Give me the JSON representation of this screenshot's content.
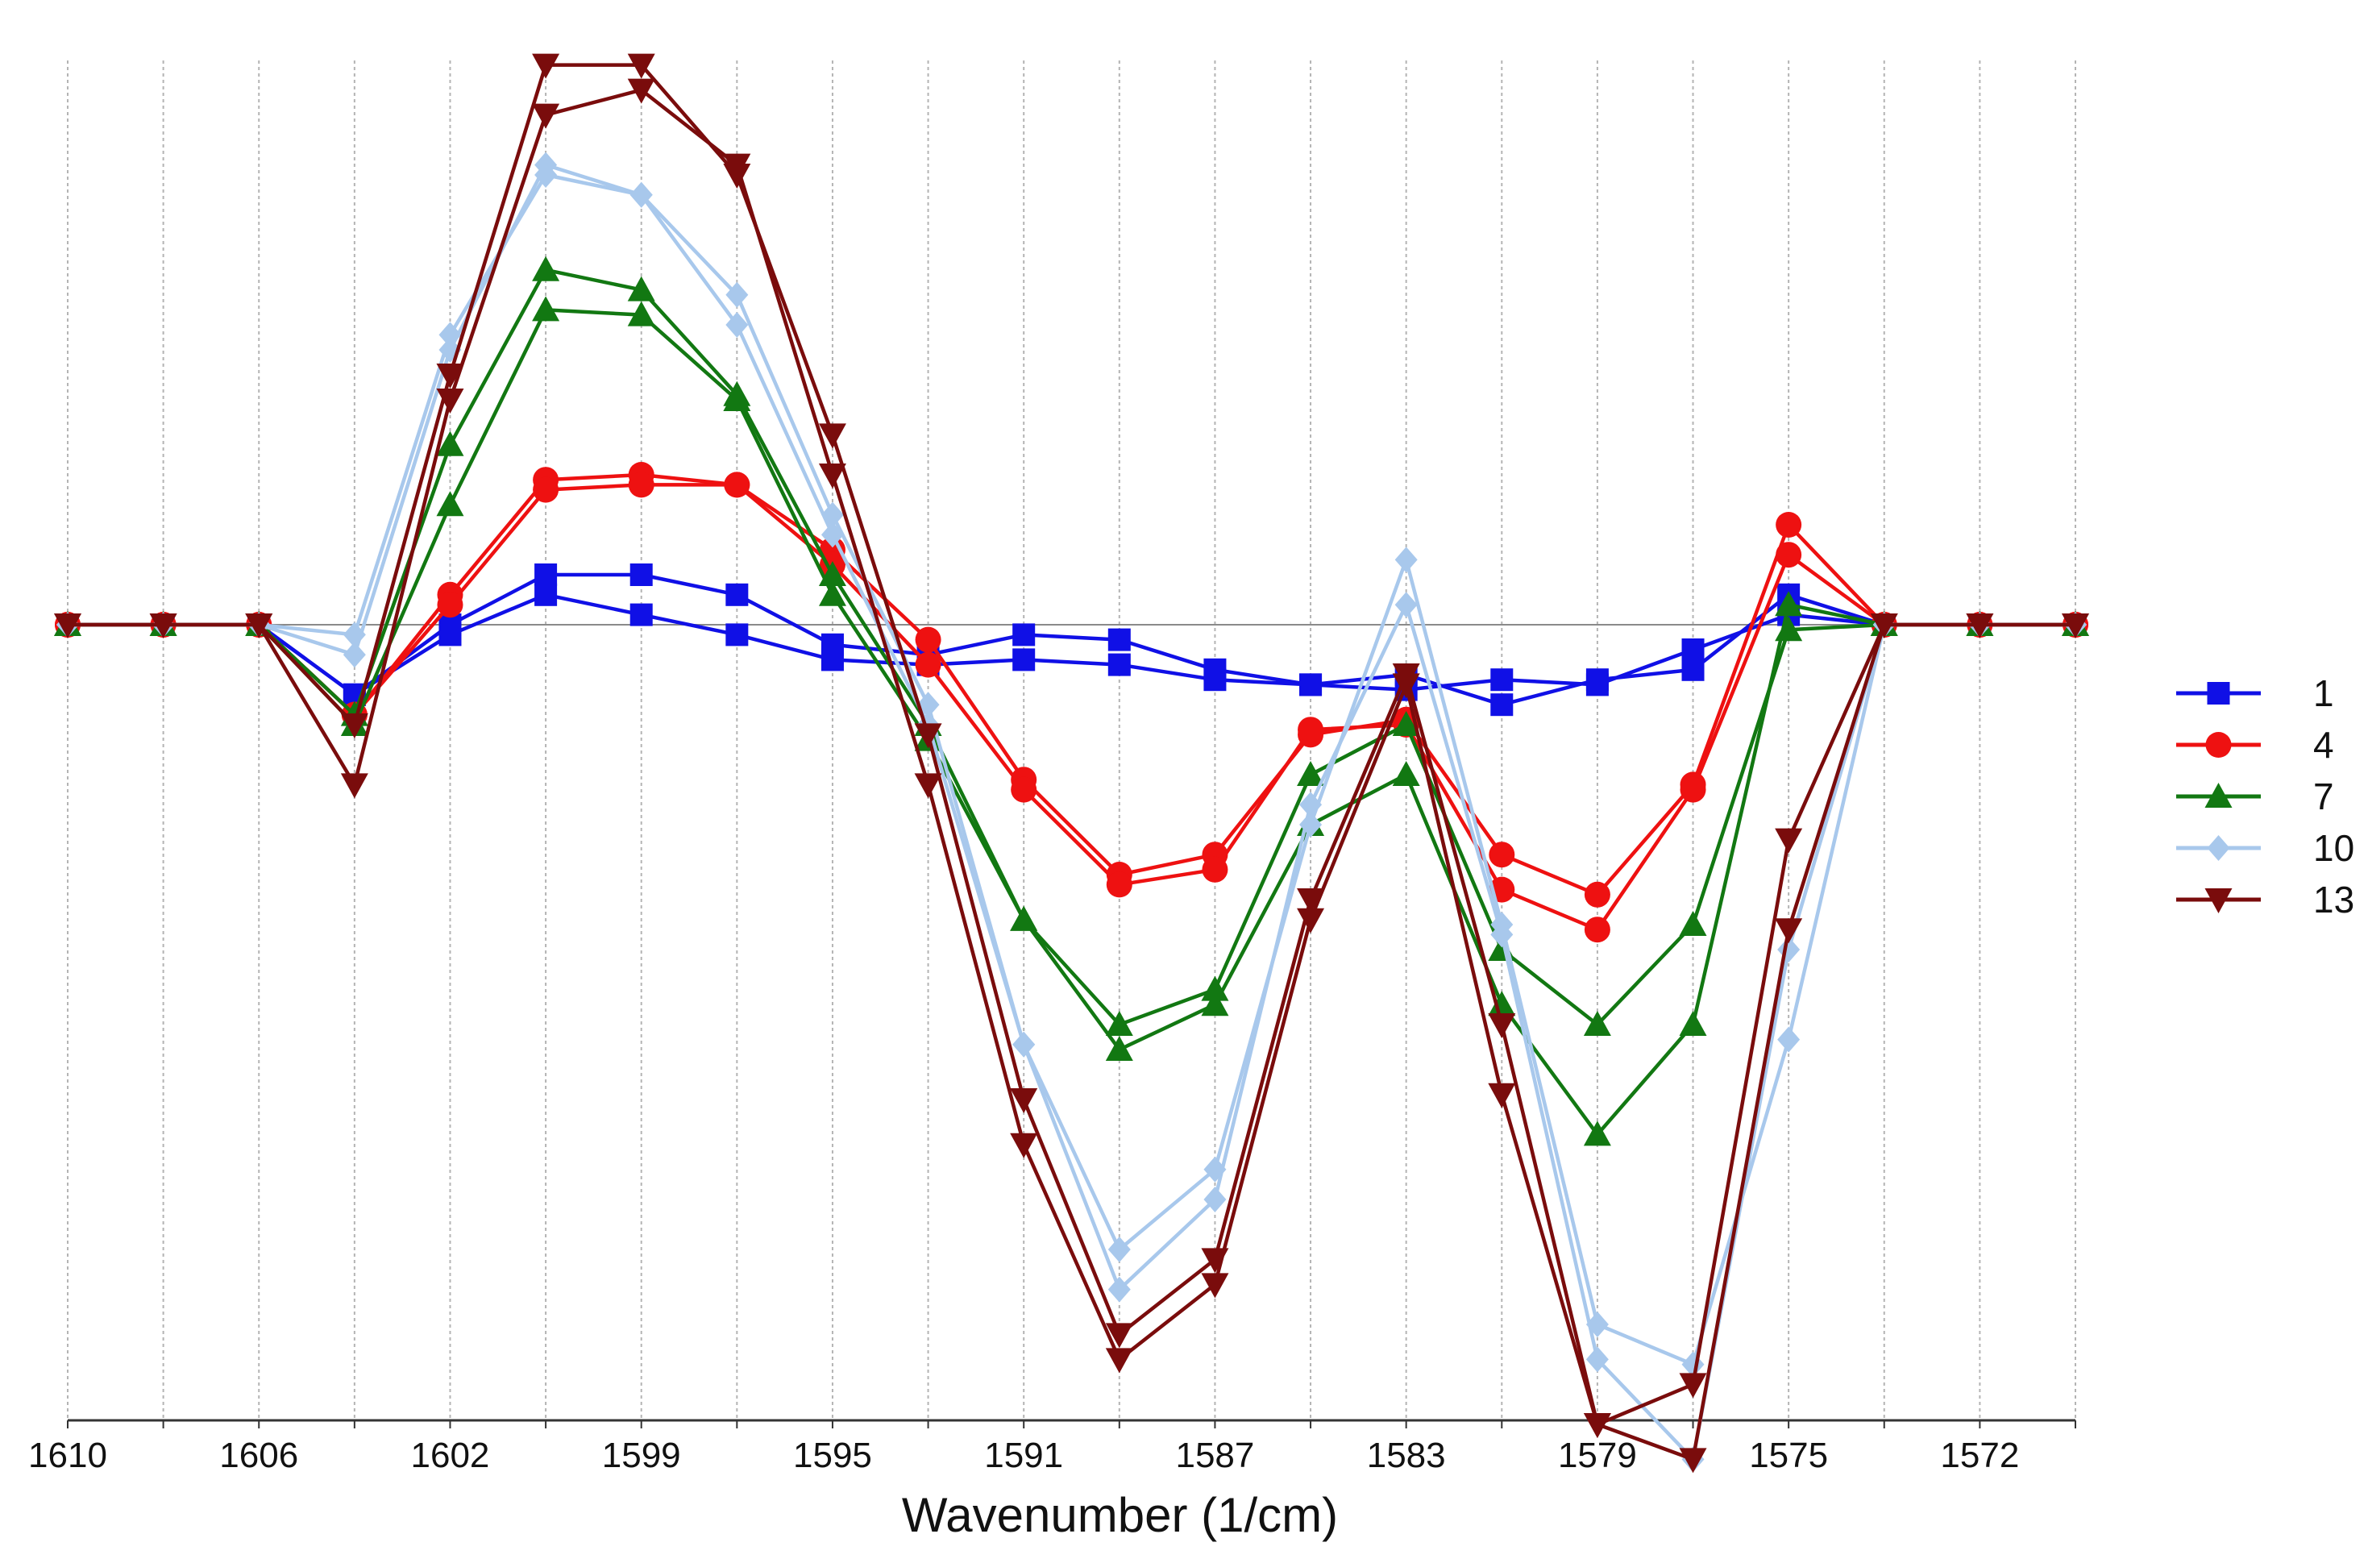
{
  "chart_data": {
    "type": "line",
    "title": "",
    "xlabel": "Wavenumber (1/cm)",
    "ylabel": "",
    "x_reversed": true,
    "xlim": [
      1610,
      1569.5
    ],
    "ylim": [
      -1.0,
      1.0
    ],
    "x_ticks": [
      1610,
      1608,
      1606,
      1604,
      1602,
      1600,
      1599,
      1597,
      1595,
      1593,
      1591,
      1589,
      1587,
      1585,
      1583,
      1581,
      1579,
      1577,
      1575,
      1573,
      1572,
      1570
    ],
    "x_tick_labels": [
      "1610",
      "",
      "1606",
      "",
      "1602",
      "",
      "1599",
      "",
      "1595",
      "",
      "1591",
      "",
      "1587",
      "",
      "1583",
      "",
      "1579",
      "",
      "1575",
      "",
      "1572",
      ""
    ],
    "x": [
      1610,
      1608,
      1606,
      1604,
      1602,
      1600,
      1599,
      1597,
      1595,
      1593,
      1591,
      1589,
      1587,
      1585,
      1583,
      1581,
      1579,
      1577,
      1575,
      1573,
      1572,
      1570
    ],
    "legend_position": "right",
    "series": [
      {
        "name": "1",
        "color": "#1010e6",
        "marker": "square",
        "values_a": [
          0,
          0,
          0,
          -0.14,
          0,
          0.1,
          0.1,
          0.06,
          -0.04,
          -0.06,
          -0.02,
          -0.03,
          -0.09,
          -0.12,
          -0.13,
          -0.11,
          -0.12,
          -0.05,
          0.02,
          0,
          0,
          0
        ],
        "values_b": [
          0,
          0,
          0,
          -0.14,
          -0.02,
          0.06,
          0.02,
          -0.02,
          -0.07,
          -0.08,
          -0.07,
          -0.08,
          -0.11,
          -0.12,
          -0.1,
          -0.16,
          -0.11,
          -0.09,
          0.06,
          0,
          0,
          0
        ]
      },
      {
        "name": "4",
        "color": "#ee1111",
        "marker": "circle",
        "values_a": [
          0,
          0,
          0,
          -0.18,
          0.06,
          0.29,
          0.3,
          0.28,
          0.15,
          -0.03,
          -0.31,
          -0.5,
          -0.46,
          -0.22,
          -0.19,
          -0.46,
          -0.54,
          -0.32,
          0.2,
          0,
          0,
          0
        ],
        "values_b": [
          0,
          0,
          0,
          -0.18,
          0.04,
          0.27,
          0.28,
          0.28,
          0.12,
          -0.08,
          -0.33,
          -0.52,
          -0.49,
          -0.21,
          -0.2,
          -0.53,
          -0.61,
          -0.33,
          0.14,
          0,
          0,
          0
        ]
      },
      {
        "name": "7",
        "color": "#127812",
        "marker": "triangle-up",
        "values_a": [
          0,
          0,
          0,
          -0.18,
          0.36,
          0.71,
          0.67,
          0.46,
          0.1,
          -0.2,
          -0.59,
          -0.8,
          -0.73,
          -0.3,
          -0.2,
          -0.65,
          -0.8,
          -0.6,
          -0.01,
          0,
          0,
          0
        ],
        "values_b": [
          0,
          0,
          0,
          -0.2,
          0.24,
          0.63,
          0.62,
          0.45,
          0.06,
          -0.23,
          -0.59,
          -0.85,
          -0.76,
          -0.4,
          -0.3,
          -0.76,
          -1.02,
          -0.8,
          0.04,
          0,
          0,
          0
        ]
      },
      {
        "name": "10",
        "color": "#a8c8ec",
        "marker": "diamond",
        "values_a": [
          0,
          0,
          0,
          -0.02,
          0.58,
          0.9,
          0.86,
          0.66,
          0.22,
          -0.16,
          -0.84,
          -1.25,
          -1.09,
          -0.4,
          0.13,
          -0.6,
          -1.4,
          -1.48,
          -0.83,
          0,
          0,
          0
        ],
        "values_b": [
          0,
          0,
          0,
          -0.06,
          0.55,
          0.92,
          0.86,
          0.6,
          0.18,
          -0.2,
          -0.84,
          -1.33,
          -1.15,
          -0.36,
          0.04,
          -0.62,
          -1.47,
          -1.67,
          -0.65,
          0,
          0,
          0
        ]
      },
      {
        "name": "13",
        "color": "#7a0c0c",
        "marker": "triangle-down",
        "values_a": [
          0,
          0,
          0,
          -0.2,
          0.5,
          1.12,
          1.12,
          0.9,
          0.38,
          -0.22,
          -0.95,
          -1.42,
          -1.27,
          -0.55,
          -0.1,
          -0.8,
          -1.6,
          -1.52,
          -0.43,
          0,
          0,
          0
        ],
        "values_b": [
          0,
          0,
          0,
          -0.32,
          0.45,
          1.02,
          1.07,
          0.92,
          0.3,
          -0.32,
          -1.04,
          -1.47,
          -1.32,
          -0.59,
          -0.12,
          -0.94,
          -1.6,
          -1.67,
          -0.61,
          0,
          0,
          0
        ]
      }
    ]
  }
}
